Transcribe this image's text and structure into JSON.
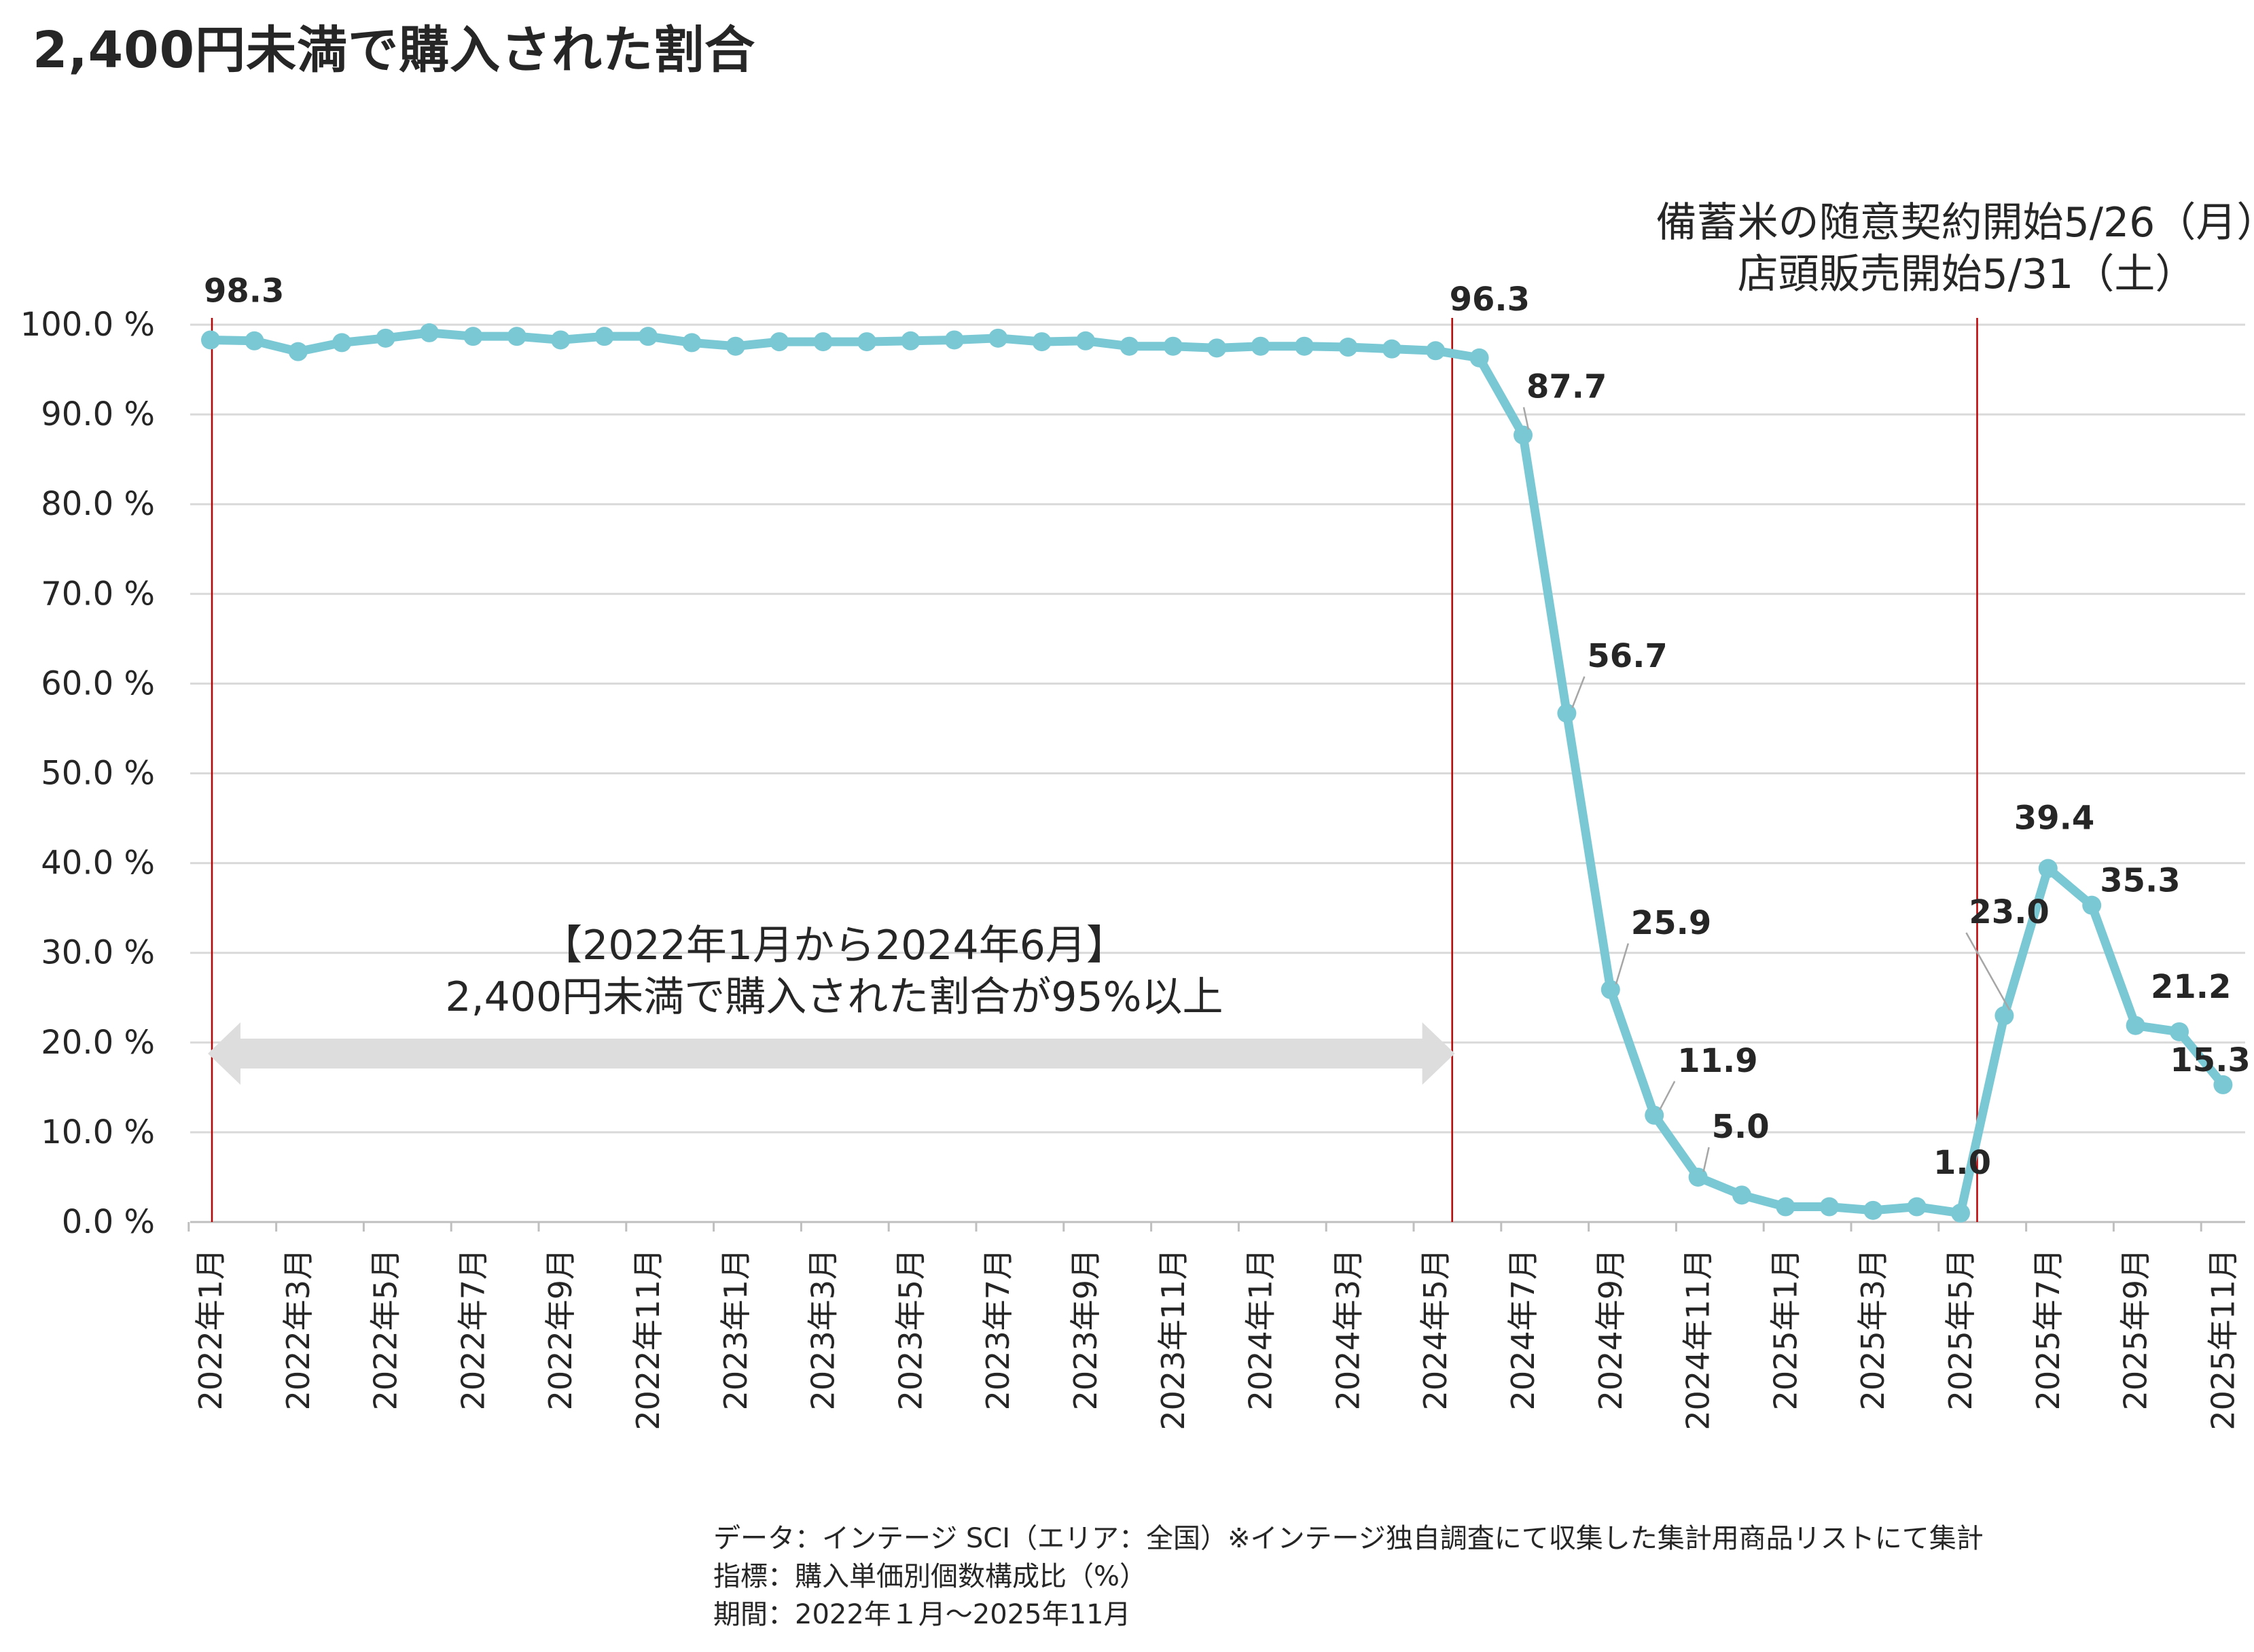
{
  "title": "2,400円未満で購入された割合",
  "chart_data": {
    "type": "line",
    "title": "2,400円未満で購入された割合",
    "xlabel": "",
    "ylabel": "",
    "ylim": [
      0,
      100
    ],
    "y_ticks": [
      "0.0 %",
      "10.0 %",
      "20.0 %",
      "30.0 %",
      "40.0 %",
      "50.0 %",
      "60.0 %",
      "70.0 %",
      "80.0 %",
      "90.0 %",
      "100.0 %"
    ],
    "y_tick_values": [
      0,
      10,
      20,
      30,
      40,
      50,
      60,
      70,
      80,
      90,
      100
    ],
    "grid": true,
    "legend": "none",
    "line_color": "#7ac8d4",
    "marker_color": "#7ac8d4",
    "event_line_color": "#c00000",
    "x": [
      "2022年1月",
      "2022年2月",
      "2022年3月",
      "2022年4月",
      "2022年5月",
      "2022年6月",
      "2022年7月",
      "2022年8月",
      "2022年9月",
      "2022年10月",
      "2022年11月",
      "2022年12月",
      "2023年1月",
      "2023年2月",
      "2023年3月",
      "2023年4月",
      "2023年5月",
      "2023年6月",
      "2023年7月",
      "2023年8月",
      "2023年9月",
      "2023年10月",
      "2023年11月",
      "2023年12月",
      "2024年1月",
      "2024年2月",
      "2024年3月",
      "2024年4月",
      "2024年5月",
      "2024年6月",
      "2024年7月",
      "2024年8月",
      "2024年9月",
      "2024年10月",
      "2024年11月",
      "2024年12月",
      "2025年1月",
      "2025年2月",
      "2025年3月",
      "2025年4月",
      "2025年5月",
      "2025年6月",
      "2025年7月",
      "2025年8月",
      "2025年9月",
      "2025年10月",
      "2025年11月"
    ],
    "x_tick_labels": [
      "2022年1月",
      "2022年3月",
      "2022年5月",
      "2022年7月",
      "2022年9月",
      "2022年11月",
      "2023年1月",
      "2023年3月",
      "2023年5月",
      "2023年7月",
      "2023年9月",
      "2023年11月",
      "2024年1月",
      "2024年3月",
      "2024年5月",
      "2024年7月",
      "2024年9月",
      "2024年11月",
      "2025年1月",
      "2025年3月",
      "2025年5月",
      "2025年7月",
      "2025年9月",
      "2025年11月"
    ],
    "series": [
      {
        "values": [
          98.3,
          98.2,
          97.0,
          98.0,
          98.5,
          99.1,
          98.7,
          98.7,
          98.3,
          98.7,
          98.7,
          98.0,
          97.6,
          98.1,
          98.1,
          98.1,
          98.2,
          98.3,
          98.5,
          98.1,
          98.2,
          97.6,
          97.6,
          97.4,
          97.6,
          97.6,
          97.5,
          97.3,
          97.1,
          96.3,
          87.7,
          56.7,
          25.9,
          11.9,
          5.0,
          3.0,
          1.7,
          1.7,
          1.3,
          1.7,
          1.0,
          23.0,
          39.4,
          35.3,
          21.9,
          21.2,
          15.3
        ]
      }
    ],
    "data_labels": [
      {
        "index": 0,
        "text": "98.3"
      },
      {
        "index": 29,
        "text": "96.3"
      },
      {
        "index": 30,
        "text": "87.7"
      },
      {
        "index": 31,
        "text": "56.7"
      },
      {
        "index": 32,
        "text": "25.9"
      },
      {
        "index": 33,
        "text": "11.9"
      },
      {
        "index": 34,
        "text": "5.0"
      },
      {
        "index": 40,
        "text": "1.0"
      },
      {
        "index": 41,
        "text": "23.0"
      },
      {
        "index": 42,
        "text": "39.4"
      },
      {
        "index": 43,
        "text": "35.3"
      },
      {
        "index": 45,
        "text": "21.2"
      },
      {
        "index": 46,
        "text": "15.3"
      }
    ],
    "event_lines": [
      {
        "label": "2022年1月"
      },
      {
        "label": "2024年6月"
      },
      {
        "label": "2025年6月"
      }
    ],
    "annotations": {
      "stockpile_line1": "備蓄米の随意契約開始5/26（月）",
      "stockpile_line2": "店頭販売開始5/31（土）",
      "period_line1": "【2022年1月から2024年6月】",
      "period_line2": "2,400円未満で購入された割合が95%以上"
    }
  },
  "notes": [
    "データ：インテージ SCI（エリア：全国）※インテージ独自調査にて収集した集計用商品リストにて集計",
    "指標：購入単価別個数構成比（%）",
    "期間：2022年１月～2025年11月"
  ]
}
